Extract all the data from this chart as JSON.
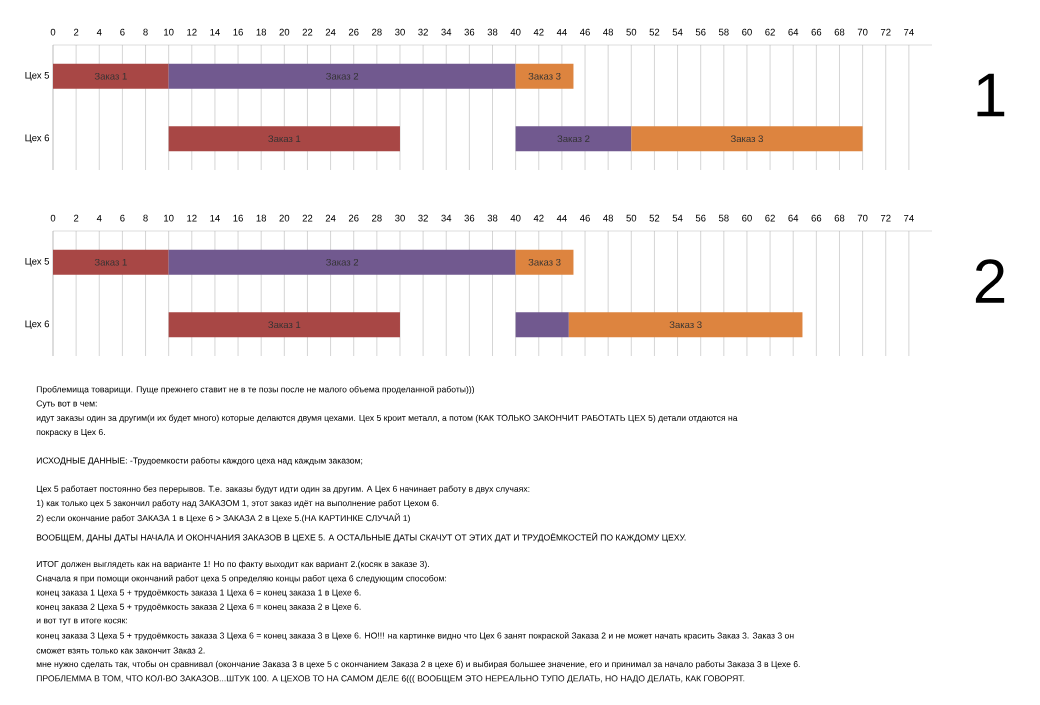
{
  "chart_data": [
    {
      "type": "bar",
      "orientation": "horizontal",
      "categories": [
        "Цех 5",
        "Цех 6"
      ],
      "xlim": [
        0,
        76
      ],
      "xticks": [
        0,
        2,
        4,
        6,
        8,
        10,
        12,
        14,
        16,
        18,
        20,
        22,
        24,
        26,
        28,
        30,
        32,
        34,
        36,
        38,
        40,
        42,
        44,
        46,
        48,
        50,
        52,
        54,
        56,
        58,
        60,
        62,
        64,
        66,
        68,
        70,
        72,
        74
      ],
      "grid": "x",
      "series": [
        {
          "name": "Заказ 1",
          "color": "#a84745",
          "base": [
            0,
            10
          ],
          "values": [
            10,
            20
          ]
        },
        {
          "name": "Заказ 2",
          "color": "#71598f",
          "base": [
            10,
            40
          ],
          "values": [
            30,
            10
          ]
        },
        {
          "name": "Заказ 3",
          "color": "#dd843f",
          "base": [
            40,
            50
          ],
          "values": [
            5,
            20
          ]
        }
      ],
      "annotations": [
        "1"
      ]
    },
    {
      "type": "bar",
      "orientation": "horizontal",
      "categories": [
        "Цех 5",
        "Цех 6"
      ],
      "xlim": [
        0,
        76
      ],
      "xticks": [
        0,
        2,
        4,
        6,
        8,
        10,
        12,
        14,
        16,
        18,
        20,
        22,
        24,
        26,
        28,
        30,
        32,
        34,
        36,
        38,
        40,
        42,
        44,
        46,
        48,
        50,
        52,
        54,
        56,
        58,
        60,
        62,
        64,
        66,
        68,
        70,
        72,
        74
      ],
      "grid": "x",
      "series": [
        {
          "name": "Заказ 1",
          "color": "#a84745",
          "base": [
            0,
            10
          ],
          "values": [
            10,
            20
          ]
        },
        {
          "name": "Заказ 2",
          "color": "#71598f",
          "base": [
            10,
            40
          ],
          "values": [
            30,
            4.6
          ]
        },
        {
          "name": "Заказ 3",
          "color": "#dd843f",
          "base": [
            40,
            44.6
          ],
          "values": [
            5,
            20.2
          ]
        }
      ],
      "annotations": [
        "2",
        "Проблемища товарищи. Пуще прежнего ставит не в те позы после не малого объема проделанной работы)))",
        "Суть вот в чем:",
        "идут заказы один за другим(и их будет много) которые делаются двумя цехами. Цех 5 кроит металл, а потом (КАК ТОЛЬКО ЗАКОНЧИТ РАБОТАТЬ ЦЕХ 5) детали отдаются на",
        "покраску в Цех 6.",
        "ИСХОДНЫЕ ДАННЫЕ: -Трудоемкости работы каждого цеха над каждым заказом;",
        "Цех 5 работает постоянно без перерывов. Т.е. заказы будут идти один за другим. А Цех 6 начинает работу в двух случаях:",
        "1) как только цех 5 закончил работу над ЗАКАЗОМ 1, этот заказ идёт на выполнение работ Цехом 6.",
        "2) если окончание работ ЗАКАЗА 1 в Цехе 6 > ЗАКАЗА 2 в Цехе 5.(НА КАРТИНКЕ СЛУЧАЙ 1)",
        "ВООБЩЕМ, ДАНЫ ДАТЫ НАЧАЛА И ОКОНЧАНИЯ ЗАКАЗОВ В ЦЕХЕ 5. А ОСТАЛЬНЫЕ ДАТЫ СКАЧУТ ОТ ЭТИХ ДАТ И ТРУДОЁМКОСТЕЙ ПО КАЖДОМУ ЦЕХУ.",
        "ИТОГ должен выглядеть как на варианте 1! Но по факту выходит как вариант 2.(косяк в заказе 3).",
        "Сначала я при помощи окончаний работ цеха 5 определяю концы работ цеха 6 следующим способом:",
        "конец заказа 1 Цеха 5 + трудоёмкость заказа 1 Цеха 6 = конец заказа 1 в Цехе 6.",
        "конец заказа 2 Цеха 5 + трудоёмкость заказа 2 Цеха 6 = конец заказа 2 в Цехе 6.",
        "и вот тут в итоге косяк:",
        "конец заказа 3 Цеха 5 + трудоёмкость заказа 3 Цеха 6 = конец заказа 3 в Цехе 6. НО!!! на картинке видно что Цех 6 занят покраской Заказа 2 и не может начать красить Заказ 3. Заказ 3 он",
        "сможет взять только как закончит Заказ 2.",
        "мне нужно сделать так, чтобы он сравнивал (окончание Заказа 3 в цехе 5 с окончанием Заказа 2 в цехе 6) и выбирая большее значение, его и принимал за начало работы Заказа 3 в Цехе 6.",
        "ПРОБЛЕММА В ТОМ, ЧТО КОЛ-ВО ЗАКАЗОВ...ШТУК 100. А ЦЕХОВ ТО НА САМОМ ДЕЛЕ 6(((  ВООБЩЕМ ЭТО НЕРЕАЛЬНО ТУПО ДЕЛАТЬ, НО НАДО ДЕЛАТЬ, КАК ГОВОРЯТ."
      ]
    }
  ]
}
